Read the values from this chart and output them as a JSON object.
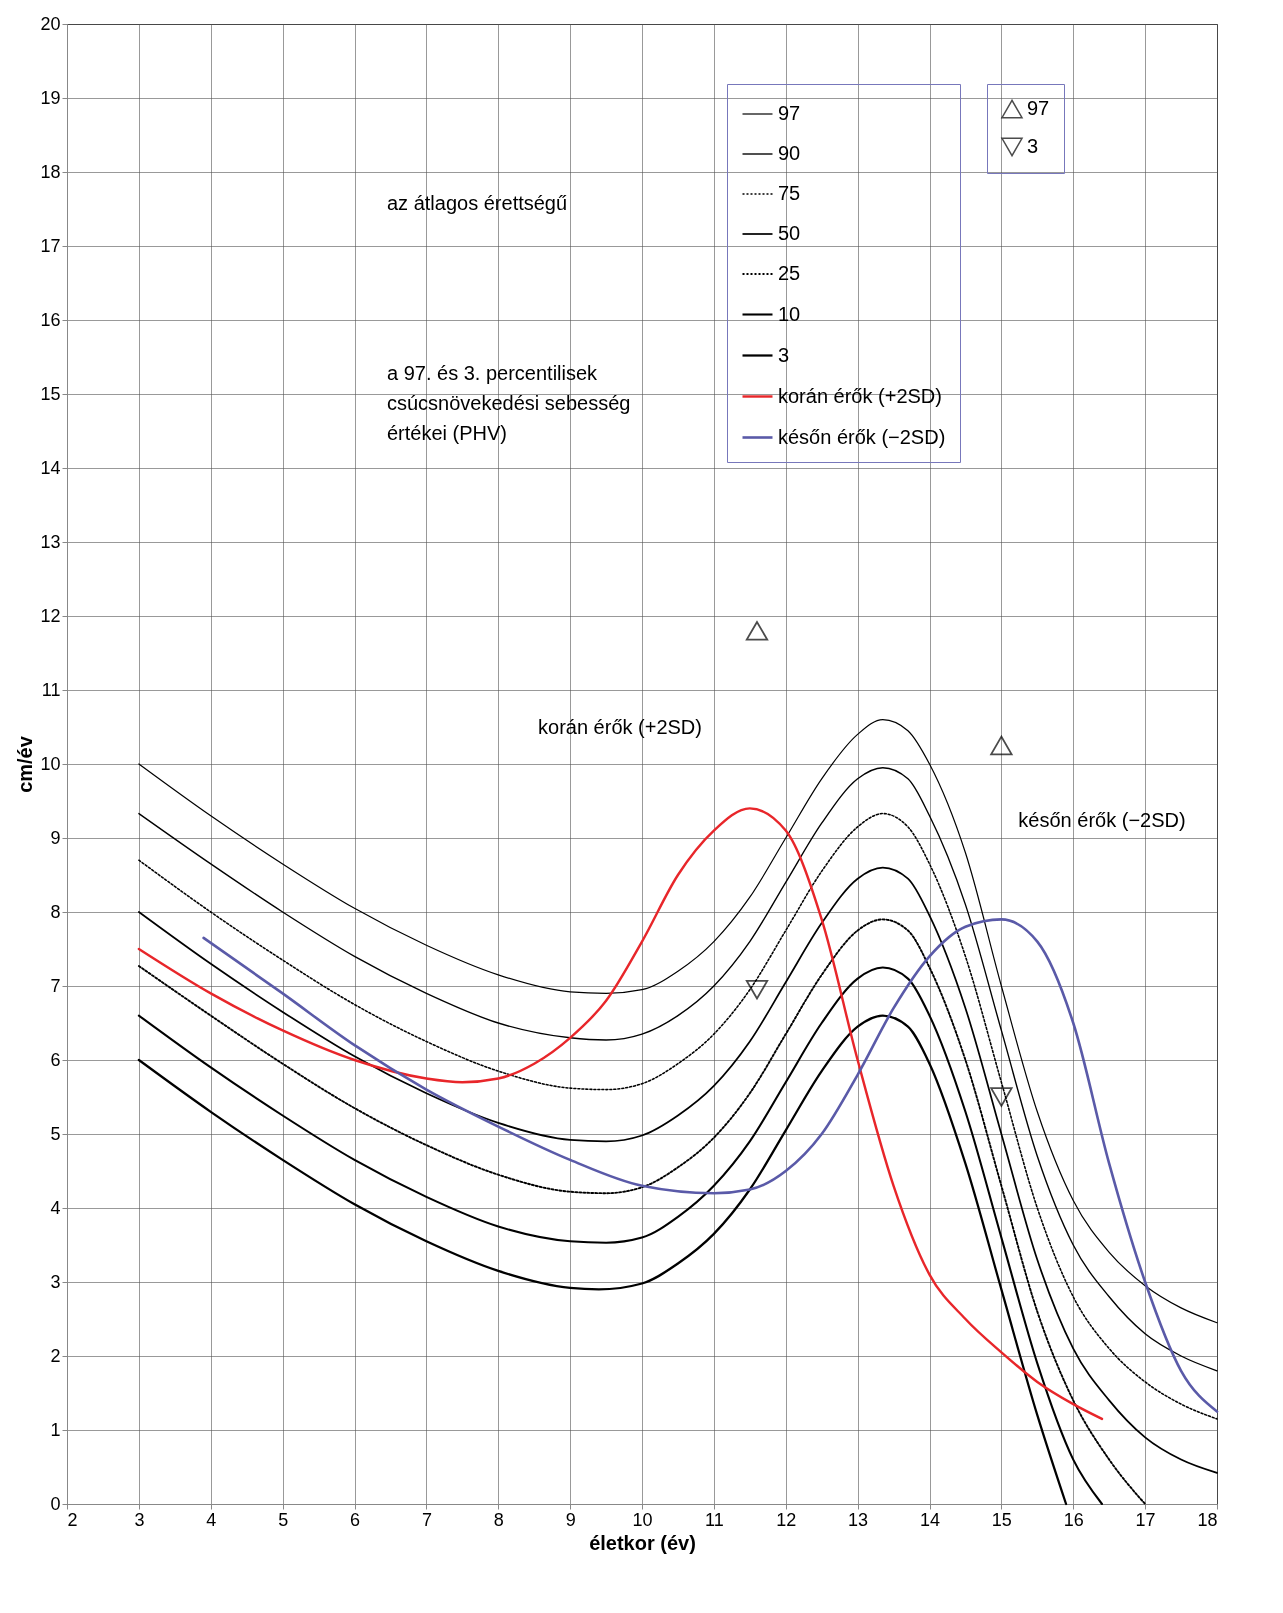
{
  "chart_data": {
    "type": "line",
    "xlabel": "életkor (év)",
    "ylabel": "cm/év",
    "xlim": [
      2,
      18
    ],
    "ylim": [
      0,
      20
    ],
    "xticks": [
      2,
      3,
      4,
      5,
      6,
      7,
      8,
      9,
      10,
      11,
      12,
      13,
      14,
      15,
      16,
      17,
      18
    ],
    "yticks": [
      0,
      1,
      2,
      3,
      4,
      5,
      6,
      7,
      8,
      9,
      10,
      11,
      12,
      13,
      14,
      15,
      16,
      17,
      18,
      19,
      20
    ],
    "grid": true,
    "legend": "top",
    "line_style": "solid",
    "annotations": [
      "az átlagos érettségű",
      "a 97. és 3. percentilisek csúcsnövekedési sebesség értékei (PHV)",
      "korán érők (+2SD)",
      "későn érők (−2SD)"
    ],
    "series": [
      {
        "name": "97",
        "color": "#000000",
        "x": [
          3,
          4,
          5,
          6,
          7,
          8,
          9,
          9.5,
          10,
          10.5,
          11,
          11.5,
          12,
          12.5,
          13,
          13.35,
          13.7,
          14,
          14.5,
          15,
          15.5,
          16,
          16.5,
          17,
          17.5,
          18
        ],
        "values": [
          10,
          9.3,
          8.65,
          8.05,
          7.55,
          7.15,
          6.92,
          6.9,
          6.95,
          7.2,
          7.6,
          8.2,
          9.0,
          9.8,
          10.4,
          10.6,
          10.45,
          10.0,
          8.8,
          7.0,
          5.3,
          4.1,
          3.4,
          2.95,
          2.65,
          2.45
        ]
      },
      {
        "name": "90",
        "color": "#000000",
        "x": [
          3,
          4,
          5,
          6,
          7,
          8,
          9,
          9.5,
          10,
          10.5,
          11,
          11.5,
          12,
          12.5,
          13,
          13.35,
          13.7,
          14,
          14.5,
          15,
          15.5,
          16,
          16.5,
          17,
          17.5,
          18
        ],
        "values": [
          9.33,
          8.65,
          8.0,
          7.4,
          6.9,
          6.5,
          6.3,
          6.27,
          6.35,
          6.6,
          7.0,
          7.6,
          8.4,
          9.2,
          9.8,
          9.95,
          9.8,
          9.3,
          8.1,
          6.4,
          4.7,
          3.5,
          2.8,
          2.3,
          2.0,
          1.8
        ]
      },
      {
        "name": "75",
        "color": "#000000",
        "line_style": "dotted",
        "x": [
          3,
          4,
          5,
          6,
          7,
          8,
          9,
          9.5,
          10,
          10.5,
          11,
          11.5,
          12,
          12.5,
          13,
          13.35,
          13.7,
          14,
          14.5,
          15,
          15.5,
          16,
          16.5,
          17,
          17.5,
          18
        ],
        "values": [
          8.7,
          8.0,
          7.35,
          6.75,
          6.25,
          5.85,
          5.62,
          5.6,
          5.68,
          5.95,
          6.35,
          6.95,
          7.75,
          8.55,
          9.15,
          9.33,
          9.15,
          8.65,
          7.4,
          5.7,
          4.0,
          2.8,
          2.1,
          1.65,
          1.35,
          1.15
        ]
      },
      {
        "name": "50",
        "color": "#000000",
        "x": [
          3,
          4,
          5,
          6,
          7,
          8,
          9,
          9.5,
          10,
          10.5,
          11,
          11.5,
          12,
          12.5,
          13,
          13.35,
          13.7,
          14,
          14.5,
          15,
          15.5,
          16,
          16.5,
          17,
          17.5,
          18
        ],
        "values": [
          8.0,
          7.3,
          6.65,
          6.05,
          5.55,
          5.15,
          4.92,
          4.9,
          4.98,
          5.25,
          5.65,
          6.25,
          7.05,
          7.85,
          8.45,
          8.6,
          8.45,
          7.95,
          6.7,
          5.0,
          3.3,
          2.1,
          1.4,
          0.9,
          0.6,
          0.42
        ]
      },
      {
        "name": "25",
        "color": "#000000",
        "line_style": "dotted",
        "x": [
          3,
          4,
          5,
          6,
          7,
          8,
          9,
          9.5,
          10,
          10.5,
          11,
          11.5,
          12,
          12.5,
          13,
          13.35,
          13.7,
          14,
          14.5,
          15,
          15.5,
          16,
          16.5,
          17
        ],
        "values": [
          7.27,
          6.6,
          5.95,
          5.35,
          4.85,
          4.45,
          4.22,
          4.2,
          4.28,
          4.55,
          4.95,
          5.55,
          6.35,
          7.15,
          7.75,
          7.9,
          7.75,
          7.25,
          6.0,
          4.3,
          2.6,
          1.4,
          0.6,
          0
        ]
      },
      {
        "name": "10",
        "color": "#000000",
        "x": [
          3,
          4,
          5,
          6,
          7,
          8,
          9,
          9.5,
          10,
          10.5,
          11,
          11.5,
          12,
          12.5,
          13,
          13.35,
          13.7,
          14,
          14.5,
          15,
          15.5,
          16,
          16.4
        ],
        "values": [
          6.6,
          5.9,
          5.25,
          4.65,
          4.15,
          3.75,
          3.55,
          3.53,
          3.6,
          3.88,
          4.3,
          4.9,
          5.7,
          6.5,
          7.1,
          7.25,
          7.1,
          6.6,
          5.3,
          3.6,
          1.9,
          0.6,
          0
        ]
      },
      {
        "name": "3",
        "color": "#000000",
        "x": [
          3,
          4,
          5,
          6,
          7,
          8,
          9,
          9.4,
          10,
          10.5,
          11,
          11.5,
          12,
          12.5,
          13,
          13.35,
          13.7,
          14,
          14.5,
          15,
          15.5,
          15.9
        ],
        "values": [
          6.0,
          5.3,
          4.65,
          4.05,
          3.55,
          3.15,
          2.92,
          2.9,
          2.98,
          3.25,
          3.65,
          4.25,
          5.05,
          5.85,
          6.45,
          6.6,
          6.45,
          5.95,
          4.6,
          2.9,
          1.2,
          0
        ]
      },
      {
        "name": "korán érők (+2SD)",
        "color": "#e8262a",
        "x": [
          3,
          4,
          5,
          6,
          7,
          7.5,
          8,
          8.5,
          9,
          9.5,
          10,
          10.5,
          11,
          11.5,
          12,
          12.5,
          13,
          13.5,
          14,
          14.5,
          15,
          15.5,
          16,
          16.4
        ],
        "values": [
          7.5,
          6.9,
          6.4,
          6.0,
          5.75,
          5.7,
          5.75,
          5.95,
          6.3,
          6.8,
          7.6,
          8.5,
          9.1,
          9.4,
          9.1,
          7.9,
          6.0,
          4.3,
          3.1,
          2.5,
          2.05,
          1.65,
          1.35,
          1.15
        ]
      },
      {
        "name": "későn érők (−2SD)",
        "color": "#5a5aa8",
        "x": [
          3.9,
          5,
          6,
          7,
          8,
          9,
          10,
          11,
          11.5,
          12,
          12.5,
          13,
          13.5,
          14,
          14.5,
          15,
          15.5,
          16,
          16.5,
          17,
          17.5,
          18
        ],
        "values": [
          7.65,
          6.9,
          6.2,
          5.6,
          5.1,
          4.65,
          4.3,
          4.2,
          4.25,
          4.5,
          5.0,
          5.8,
          6.7,
          7.4,
          7.8,
          7.9,
          7.6,
          6.5,
          4.6,
          3.0,
          1.8,
          1.25
        ]
      },
      {
        "name": "97",
        "type": "scatter",
        "marker": "triangle",
        "color": "#000000",
        "x": [
          11.6,
          15
        ],
        "values": [
          11.8,
          10.25
        ]
      },
      {
        "name": "3",
        "type": "scatter",
        "marker": "triangle-down",
        "color": "#000000",
        "x": [
          11.6,
          15
        ],
        "values": [
          6.95,
          5.5
        ]
      }
    ]
  }
}
